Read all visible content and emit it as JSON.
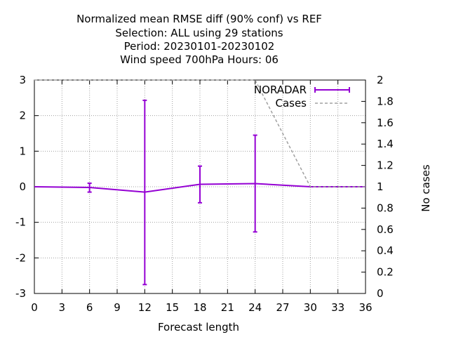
{
  "chart_data": {
    "type": "line",
    "title_lines": [
      "Normalized mean RMSE diff (90% conf) vs REF",
      "Selection: ALL using    29 stations",
      "Period: 20230101-20230102",
      "Wind speed 700hPa   Hours:  06"
    ],
    "xlabel": "Forecast length",
    "ylabel": "",
    "y2label": "No cases",
    "x_ticks": [
      0,
      3,
      6,
      9,
      12,
      15,
      18,
      21,
      24,
      27,
      30,
      33,
      36
    ],
    "y_ticks": [
      -3,
      -2,
      -1,
      0,
      1,
      2,
      3
    ],
    "y2_ticks": [
      "0",
      "0.2",
      "0.4",
      "0.6",
      "0.8",
      "1",
      "1.2",
      "1.4",
      "1.6",
      "1.8",
      "2"
    ],
    "xlim": [
      0,
      36
    ],
    "ylim": [
      -3,
      3
    ],
    "y2lim": [
      0,
      2
    ],
    "grid": true,
    "legend_position": "top-right",
    "series": [
      {
        "name": "NORADAR",
        "axis": "left",
        "color": "#9400d3",
        "x": [
          0,
          6,
          12,
          18,
          24,
          30,
          36
        ],
        "y": [
          0.0,
          -0.02,
          -0.15,
          0.07,
          0.09,
          0.0,
          0.0
        ],
        "err_low": [
          null,
          -0.15,
          -2.75,
          -0.45,
          -1.27,
          null,
          null
        ],
        "err_high": [
          null,
          0.1,
          2.43,
          0.58,
          1.45,
          null,
          null
        ]
      },
      {
        "name": "Cases",
        "axis": "right",
        "color": "#a0a0a0",
        "x": [
          0,
          6,
          12,
          18,
          24,
          30,
          36
        ],
        "y": [
          2,
          2,
          2,
          2,
          2,
          1,
          1
        ]
      }
    ]
  }
}
